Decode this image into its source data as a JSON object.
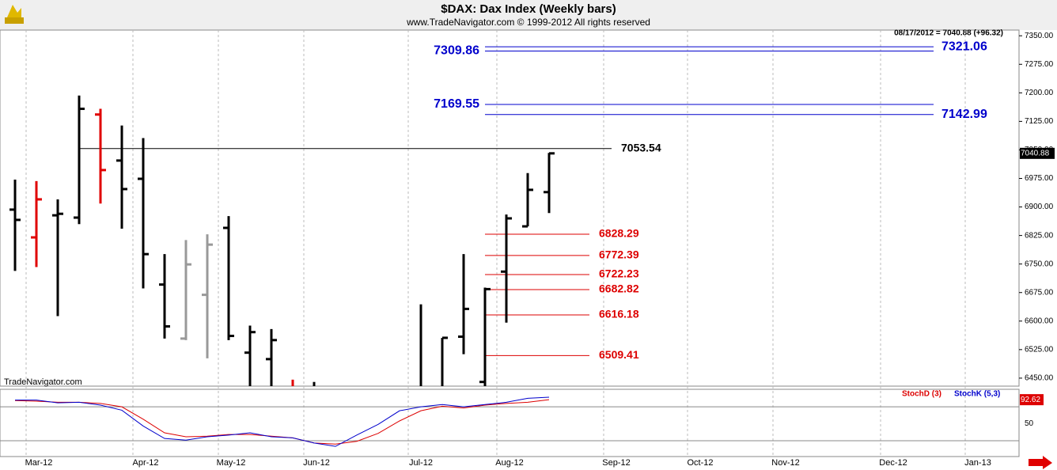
{
  "chart_data": [
    {
      "type": "ohlc",
      "title": "$DAX:  Dax Index  (Weekly bars)",
      "subtitle": "www.TradeNavigator.com © 1999-2012 All rights reserved",
      "annotation": "08/17/2012 = 7040.88 (+96.32)",
      "watermark": "TradeNavigator.com",
      "x_labels": [
        "Mar-12",
        "Apr-12",
        "May-12",
        "Jun-12",
        "Jul-12",
        "Aug-12",
        "Sep-12",
        "Oct-12",
        "Nov-12",
        "Dec-12",
        "Jan-13"
      ],
      "open": [
        6893,
        6820,
        6878,
        6872,
        7143,
        7022,
        6974,
        6696,
        6554,
        6669,
        6845,
        6517,
        6500,
        6360,
        6350,
        null,
        null,
        null,
        null,
        6400,
        6420,
        6559,
        6440,
        6730,
        6849,
        6939
      ],
      "high": [
        6972,
        6968,
        6920,
        7193,
        7158,
        7114,
        7081,
        6776,
        6813,
        6828,
        6876,
        6588,
        6579,
        6446,
        6440,
        null,
        null,
        null,
        null,
        6644,
        6556,
        6776,
        6688,
        6880,
        6989,
        7042
      ],
      "low": [
        6732,
        6742,
        6613,
        6855,
        6909,
        6843,
        6686,
        6554,
        6550,
        6502,
        6550,
        6400,
        6390,
        6350,
        6330,
        null,
        null,
        null,
        null,
        6380,
        6400,
        6513,
        6420,
        6596,
        6849,
        6884
      ],
      "close": [
        6866,
        6920,
        6882,
        7158,
        6997,
        6947,
        6776,
        6586,
        6749,
        6801,
        6561,
        6571,
        6550,
        6380,
        6400,
        null,
        null,
        null,
        null,
        6420,
        6556,
        6632,
        6684,
        6870,
        6945,
        7040.88
      ],
      "colors": [
        "#000000",
        "#e00000",
        "#000000",
        "#000000",
        "#e00000",
        "#000000",
        "#000000",
        "#000000",
        "#999999",
        "#999999",
        "#000000",
        "#000000",
        "#000000",
        "#e00000",
        "#000000",
        null,
        null,
        null,
        null,
        "#000000",
        "#000000",
        "#000000",
        "#000000",
        "#000000",
        "#000000",
        "#000000"
      ],
      "last_value": 7040.88,
      "ylim": [
        6429,
        7365
      ],
      "yticks": [
        {
          "value": 7350,
          "label": "7350.00"
        },
        {
          "value": 7275,
          "label": "7275.00"
        },
        {
          "value": 7200,
          "label": "7200.00"
        },
        {
          "value": 7125,
          "label": "7125.00"
        },
        {
          "value": 7050,
          "label": "7050.00"
        },
        {
          "value": 6975,
          "label": "6975.00"
        },
        {
          "value": 6900,
          "label": "6900.00"
        },
        {
          "value": 6825,
          "label": "6825.00"
        },
        {
          "value": 6750,
          "label": "6750.00"
        },
        {
          "value": 6675,
          "label": "6675.00"
        },
        {
          "value": 6600,
          "label": "6600.00"
        },
        {
          "value": 6525,
          "label": "6525.00"
        },
        {
          "value": 6450,
          "label": "6450.00"
        }
      ],
      "levels": [
        {
          "value": 7321.06,
          "color": "#0000cc",
          "side": "right"
        },
        {
          "value": 7309.86,
          "color": "#0000cc",
          "side": "left"
        },
        {
          "value": 7169.55,
          "color": "#0000cc",
          "side": "left"
        },
        {
          "value": 7142.99,
          "color": "#0000cc",
          "side": "right"
        },
        {
          "value": 7053.54,
          "color": "#000000",
          "side": "right"
        },
        {
          "value": 6828.29,
          "color": "#dd0000",
          "side": "right"
        },
        {
          "value": 6772.39,
          "color": "#dd0000",
          "side": "right"
        },
        {
          "value": 6722.23,
          "color": "#dd0000",
          "side": "right"
        },
        {
          "value": 6682.82,
          "color": "#dd0000",
          "side": "right"
        },
        {
          "value": 6616.18,
          "color": "#dd0000",
          "side": "right"
        },
        {
          "value": 6509.41,
          "color": "#dd0000",
          "side": "right"
        }
      ]
    },
    {
      "type": "line",
      "series": [
        {
          "name": "StochD (3)",
          "color": "#dd0000",
          "values": [
            91,
            90,
            88,
            88,
            86,
            80,
            58,
            34,
            27,
            28,
            31,
            31,
            28,
            25,
            16,
            14,
            19,
            33,
            55,
            73,
            81,
            78,
            83,
            86,
            88,
            92.62
          ]
        },
        {
          "name": "StochK (5,3)",
          "color": "#0000cc",
          "values": [
            92,
            92,
            87,
            88,
            83,
            74,
            46,
            24,
            21,
            27,
            30,
            34,
            27,
            25,
            16,
            10,
            30,
            49,
            73,
            80,
            84,
            80,
            84,
            88,
            95,
            97
          ]
        }
      ],
      "last_value": 92.62,
      "ylim": [
        -8,
        111
      ],
      "yticks": [
        50
      ],
      "levels": [
        80,
        20
      ]
    }
  ]
}
